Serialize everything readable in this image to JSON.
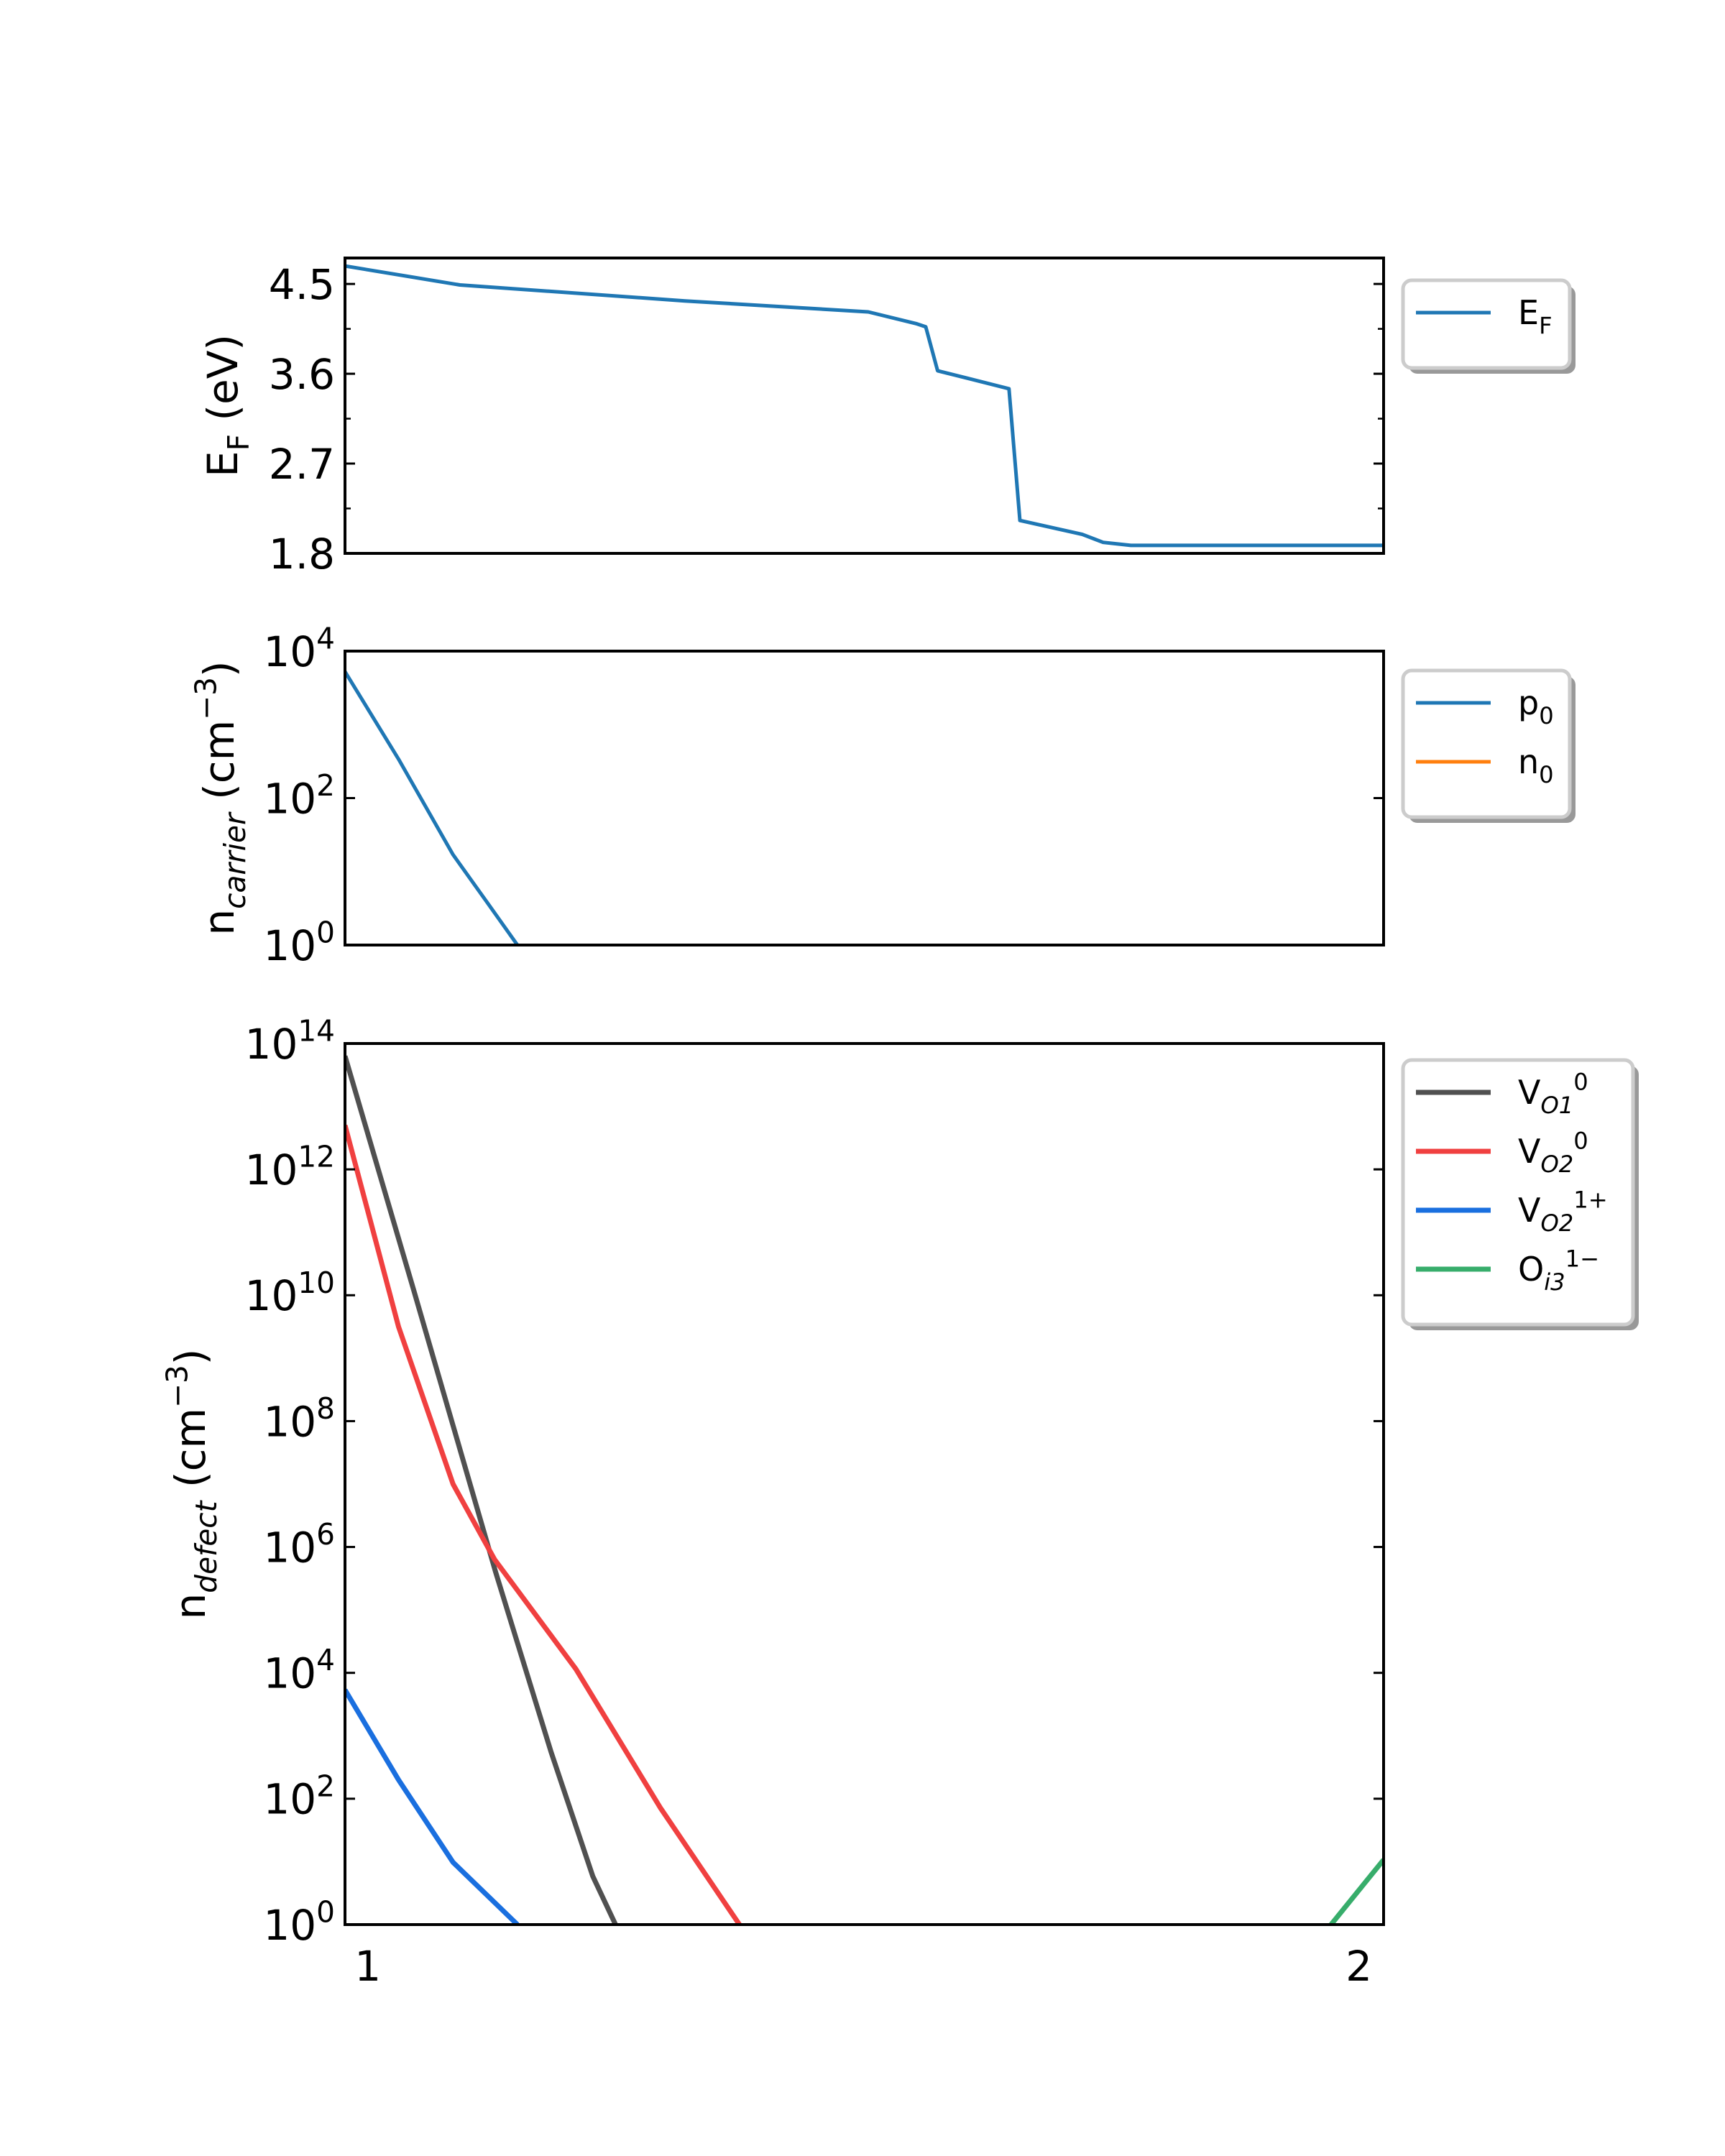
{
  "chart_data": [
    {
      "type": "line",
      "yscale": "linear",
      "xlim": [
        0.977,
        2.025
      ],
      "ylim": [
        1.8,
        4.76
      ],
      "yticks": [
        1.8,
        2.7,
        3.6,
        4.5
      ],
      "ytick_labels": [
        "1.8",
        "2.7",
        "3.6",
        "4.5"
      ],
      "yminor": [
        2.25,
        3.15,
        4.05
      ],
      "ylabel": [
        {
          "t": "E"
        },
        {
          "t": "F",
          "sub": true
        },
        {
          "t": " (eV)"
        }
      ],
      "show_xticklabels": false,
      "legend_placement": "outside-upper-right",
      "series": [
        {
          "name": [
            {
              "t": "E"
            },
            {
              "t": "F",
              "sub": true
            }
          ],
          "color": "#1f77b4",
          "x": [
            0.977,
            1.093,
            1.32,
            1.505,
            1.554,
            1.563,
            1.575,
            1.603,
            1.647,
            1.658,
            1.721,
            1.742,
            1.77,
            2.025
          ],
          "y": [
            4.68,
            4.49,
            4.33,
            4.22,
            4.1,
            4.07,
            3.63,
            3.56,
            3.45,
            2.13,
            1.99,
            1.91,
            1.88,
            1.88
          ]
        }
      ]
    },
    {
      "type": "line",
      "yscale": "log",
      "xlim": [
        0.977,
        2.025
      ],
      "ylim_exp": [
        0,
        4
      ],
      "ytick_exps": [
        0,
        2,
        4
      ],
      "ytick_base": "10",
      "ylabel": [
        {
          "t": "n"
        },
        {
          "t": "carrier",
          "sub": true,
          "italic": true
        },
        {
          "t": " (cm"
        },
        {
          "t": "−3",
          "sup": true
        },
        {
          "t": ")"
        }
      ],
      "show_xticklabels": false,
      "legend_placement": "outside-upper-right",
      "series": [
        {
          "name": [
            {
              "t": "p"
            },
            {
              "t": "0",
              "sub": true
            }
          ],
          "color": "#1f77b4",
          "x": [
            0.977,
            1.031,
            1.086,
            1.121,
            1.151
          ],
          "y_exp": [
            3.72,
            2.53,
            1.23,
            0.57,
            0
          ]
        },
        {
          "name": [
            {
              "t": "n"
            },
            {
              "t": "0",
              "sub": true
            }
          ],
          "color": "#ff7f0e",
          "x": [],
          "y_exp": []
        }
      ]
    },
    {
      "type": "line",
      "yscale": "log",
      "xlim": [
        0.977,
        2.025
      ],
      "ylim_exp": [
        0,
        14
      ],
      "ytick_exps": [
        0,
        2,
        4,
        6,
        8,
        10,
        12,
        14
      ],
      "ytick_base": "10",
      "xticks": [
        1,
        2
      ],
      "xtick_labels": [
        "1",
        "2"
      ],
      "ylabel": [
        {
          "t": "n"
        },
        {
          "t": "defect",
          "sub": true,
          "italic": true
        },
        {
          "t": " (cm"
        },
        {
          "t": "−3",
          "sup": true
        },
        {
          "t": ")"
        }
      ],
      "show_xticklabels": true,
      "legend_placement": "outside-upper-right",
      "series": [
        {
          "name": [
            {
              "t": "V"
            },
            {
              "t": "O1",
              "sub": true,
              "italic": true
            },
            {
              "t": "0",
              "sup": true
            }
          ],
          "color": "#505050",
          "x": [
            0.977,
            1.046,
            1.129,
            1.185,
            1.227,
            1.25
          ],
          "y_exp": [
            13.8,
            10.1,
            5.6,
            2.74,
            0.77,
            0
          ]
        },
        {
          "name": [
            {
              "t": "V"
            },
            {
              "t": "O2",
              "sub": true,
              "italic": true
            },
            {
              "t": "0",
              "sup": true
            }
          ],
          "color": "#f04040",
          "x": [
            0.977,
            1.031,
            1.086,
            1.128,
            1.21,
            1.295,
            1.375
          ],
          "y_exp": [
            12.7,
            9.5,
            7.0,
            5.8,
            4.06,
            1.86,
            0
          ]
        },
        {
          "name": [
            {
              "t": "V"
            },
            {
              "t": "O2",
              "sub": true,
              "italic": true
            },
            {
              "t": "1+",
              "sup": true
            }
          ],
          "color": "#1a6fdf",
          "x": [
            0.977,
            1.031,
            1.086,
            1.151
          ],
          "y_exp": [
            3.73,
            2.3,
            0.99,
            0
          ]
        },
        {
          "name": [
            {
              "t": "O"
            },
            {
              "t": "i3",
              "sub": true,
              "italic": true
            },
            {
              "t": "1−",
              "sup": true
            }
          ],
          "color": "#37ad6b",
          "x": [
            1.972,
            2.025
          ],
          "y_exp": [
            0,
            1.03
          ]
        }
      ]
    }
  ]
}
